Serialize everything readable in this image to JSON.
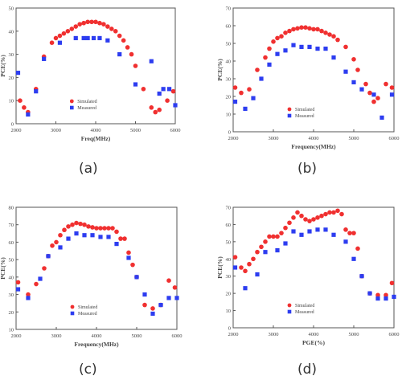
{
  "colors": {
    "simulated": "#f03030",
    "measured": "#2d3df0",
    "axis": "#555555",
    "text": "#444444"
  },
  "panels": [
    {
      "id": "a",
      "label": "(a)"
    },
    {
      "id": "b",
      "label": "(b)"
    },
    {
      "id": "c",
      "label": "(c)"
    },
    {
      "id": "d",
      "label": "(d)"
    }
  ],
  "chart_data": [
    {
      "type": "scatter",
      "title": "",
      "xlabel": "Freq(MHz)",
      "ylabel": "PCE(%)",
      "xlim": [
        2000,
        6000
      ],
      "ylim": [
        0,
        50
      ],
      "xticks": [
        2000,
        3000,
        4000,
        5000,
        6000
      ],
      "yticks": [
        0,
        10,
        20,
        30,
        40,
        50
      ],
      "xtick_labels": [
        "2000",
        "3000",
        "4000",
        "5000",
        "6000"
      ],
      "ytick_labels": [
        "0",
        "10",
        "20",
        "30",
        "40",
        "50"
      ],
      "grid": false,
      "legend": "lower-center",
      "series": [
        {
          "name": "Simulated",
          "color": "#f03030",
          "x": [
            2100,
            2200,
            2300,
            2500,
            2700,
            2900,
            3000,
            3100,
            3200,
            3300,
            3400,
            3500,
            3600,
            3700,
            3800,
            3900,
            4000,
            4100,
            4200,
            4300,
            4400,
            4500,
            4600,
            4700,
            4800,
            4900,
            5000,
            5200,
            5400,
            5500,
            5600,
            5800,
            5950
          ],
          "y": [
            10,
            7,
            5,
            15,
            29,
            35,
            37,
            38,
            39,
            40,
            41,
            42,
            43,
            43.5,
            44,
            44,
            44,
            43.5,
            43,
            42,
            41,
            40,
            38,
            36,
            33,
            30,
            25,
            15,
            7,
            5,
            6,
            10,
            14
          ]
        },
        {
          "name": "Measured",
          "color": "#2d3df0",
          "x": [
            2050,
            2300,
            2500,
            2700,
            3100,
            3500,
            3700,
            3800,
            3950,
            4100,
            4300,
            4600,
            5000,
            5400,
            5600,
            5700,
            5850,
            6000
          ],
          "y": [
            22,
            4,
            14,
            28,
            35,
            37,
            37,
            37,
            37,
            37,
            36,
            30,
            17,
            27,
            13,
            15,
            15,
            8
          ]
        }
      ]
    },
    {
      "type": "scatter",
      "title": "",
      "xlabel": "Frequency(MHz)",
      "ylabel": "PCE(%)",
      "xlim": [
        2000,
        6000
      ],
      "ylim": [
        0,
        70
      ],
      "xticks": [
        2000,
        3000,
        4000,
        5000,
        6000
      ],
      "yticks": [
        0,
        10,
        20,
        30,
        40,
        50,
        60,
        70
      ],
      "xtick_labels": [
        "2000",
        "3000",
        "4000",
        "5000",
        "6000"
      ],
      "ytick_labels": [
        "0",
        "10",
        "20",
        "30",
        "40",
        "50",
        "60",
        "70"
      ],
      "grid": false,
      "legend": "lower-center",
      "series": [
        {
          "name": "Simulated",
          "color": "#f03030",
          "x": [
            2050,
            2200,
            2400,
            2600,
            2800,
            2900,
            3000,
            3100,
            3200,
            3300,
            3400,
            3500,
            3600,
            3700,
            3800,
            3900,
            4000,
            4100,
            4200,
            4300,
            4400,
            4500,
            4600,
            4800,
            5000,
            5100,
            5300,
            5400,
            5500,
            5600,
            5800,
            5950
          ],
          "y": [
            25,
            22,
            24,
            35,
            42,
            47,
            51,
            53,
            54,
            56,
            57,
            58,
            58.5,
            59,
            59,
            58.5,
            58,
            58,
            57,
            56,
            55,
            54,
            52,
            48,
            41,
            35,
            27,
            22,
            17,
            19,
            27,
            25
          ]
        },
        {
          "name": "Measured",
          "color": "#2d3df0",
          "x": [
            2050,
            2300,
            2500,
            2700,
            2900,
            3100,
            3300,
            3500,
            3700,
            3900,
            4100,
            4300,
            4500,
            4800,
            5000,
            5200,
            5500,
            5700,
            5950
          ],
          "y": [
            17,
            13,
            19,
            30,
            38,
            44,
            46,
            49,
            48,
            48,
            47,
            47,
            42,
            34,
            28,
            24,
            21,
            8,
            21
          ]
        }
      ]
    },
    {
      "type": "scatter",
      "title": "",
      "xlabel": "Frequency(MHz)",
      "ylabel": "PCE(%)",
      "xlim": [
        2000,
        6000
      ],
      "ylim": [
        10,
        80
      ],
      "xticks": [
        2000,
        3000,
        4000,
        5000,
        6000
      ],
      "yticks": [
        10,
        20,
        30,
        40,
        50,
        60,
        70,
        80
      ],
      "xtick_labels": [
        "2000",
        "3000",
        "4000",
        "5000",
        "6000"
      ],
      "ytick_labels": [
        "10",
        "20",
        "30",
        "40",
        "50",
        "60",
        "70",
        "80"
      ],
      "grid": false,
      "legend": "lower-center",
      "series": [
        {
          "name": "Simulated",
          "color": "#f03030",
          "x": [
            2050,
            2300,
            2500,
            2700,
            2800,
            2900,
            3000,
            3100,
            3200,
            3300,
            3400,
            3500,
            3600,
            3700,
            3800,
            3900,
            4000,
            4100,
            4200,
            4300,
            4400,
            4500,
            4600,
            4700,
            4800,
            4900,
            5000,
            5200,
            5400,
            5600,
            5800,
            5950
          ],
          "y": [
            37,
            30,
            36,
            45,
            52,
            58,
            60,
            64,
            67,
            69,
            70,
            71,
            70.5,
            70,
            69,
            68.5,
            68,
            68,
            68,
            68,
            68,
            66,
            62,
            62,
            54,
            47,
            40,
            24,
            22,
            24,
            38,
            34
          ]
        },
        {
          "name": "Measured",
          "color": "#2d3df0",
          "x": [
            2050,
            2300,
            2600,
            2800,
            3100,
            3300,
            3500,
            3700,
            3900,
            4100,
            4300,
            4500,
            4800,
            5000,
            5200,
            5400,
            5600,
            5800,
            6000
          ],
          "y": [
            33,
            28,
            39,
            52,
            57,
            62,
            65,
            64,
            64,
            63,
            63,
            59,
            51,
            40,
            30,
            19,
            24,
            28,
            28
          ]
        }
      ]
    },
    {
      "type": "scatter",
      "title": "",
      "xlabel": "PGE(%)",
      "ylabel": "PCE(%)",
      "xlim": [
        2000,
        6000
      ],
      "ylim": [
        0,
        70
      ],
      "xticks": [
        2000,
        3000,
        4000,
        5000,
        6000
      ],
      "yticks": [
        0,
        10,
        20,
        30,
        40,
        50,
        60,
        70
      ],
      "xtick_labels": [
        "2000",
        "3000",
        "4000",
        "5000",
        "6000"
      ],
      "ytick_labels": [
        "0",
        "10",
        "20",
        "30",
        "40",
        "50",
        "60",
        "70"
      ],
      "grid": false,
      "legend": "lower-center",
      "series": [
        {
          "name": "Simulated",
          "color": "#f03030",
          "x": [
            2050,
            2200,
            2300,
            2400,
            2500,
            2600,
            2700,
            2800,
            2900,
            3000,
            3100,
            3200,
            3300,
            3400,
            3500,
            3600,
            3700,
            3800,
            3900,
            4000,
            4100,
            4200,
            4300,
            4400,
            4500,
            4600,
            4700,
            4800,
            4900,
            5000,
            5100,
            5200,
            5400,
            5600,
            5800,
            5950
          ],
          "y": [
            41,
            35,
            33,
            37,
            40,
            44,
            47,
            50,
            53,
            53,
            53,
            55,
            58,
            61,
            64,
            67,
            65,
            63,
            62,
            63,
            64,
            65,
            66,
            67,
            67,
            68,
            66,
            57,
            55,
            55,
            46,
            30,
            20,
            19,
            19,
            26
          ]
        },
        {
          "name": "Measured",
          "color": "#2d3df0",
          "x": [
            2050,
            2300,
            2600,
            2800,
            3100,
            3300,
            3500,
            3700,
            3900,
            4100,
            4300,
            4500,
            4800,
            5000,
            5200,
            5400,
            5600,
            5800,
            6000
          ],
          "y": [
            35,
            23,
            31,
            44,
            45,
            49,
            56,
            54,
            56,
            57,
            57,
            54,
            50,
            40,
            30,
            20,
            17,
            17,
            18
          ]
        }
      ]
    }
  ]
}
